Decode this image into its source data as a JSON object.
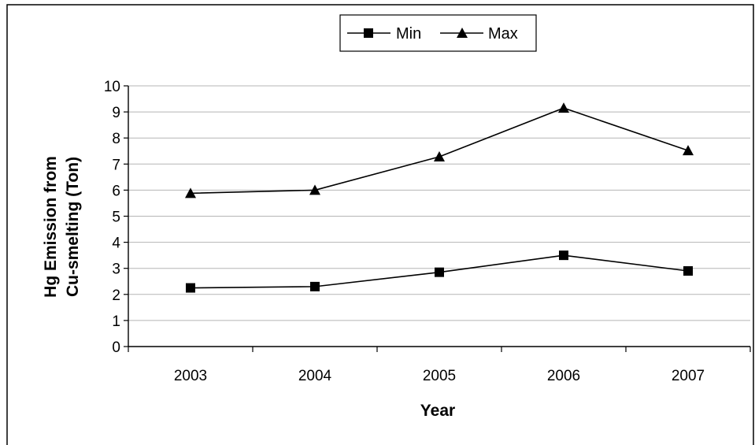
{
  "chart_data": {
    "type": "line",
    "title": "",
    "xlabel": "Year",
    "ylabel_lines": [
      "Hg Emission from",
      "Cu-smelting (Ton)"
    ],
    "categories": [
      "2003",
      "2004",
      "2005",
      "2006",
      "2007"
    ],
    "ylim": [
      0,
      10
    ],
    "yticks": [
      "0",
      "1",
      "2",
      "3",
      "4",
      "5",
      "6",
      "7",
      "8",
      "9",
      "10"
    ],
    "grid": "horizontal",
    "legend_position": "top-center",
    "series": [
      {
        "name": "Min",
        "marker": "square",
        "color": "#000000",
        "values": [
          2.25,
          2.3,
          2.85,
          3.5,
          2.9
        ]
      },
      {
        "name": "Max",
        "marker": "triangle",
        "color": "#000000",
        "values": [
          5.88,
          6.0,
          7.28,
          9.15,
          7.52
        ]
      }
    ]
  }
}
